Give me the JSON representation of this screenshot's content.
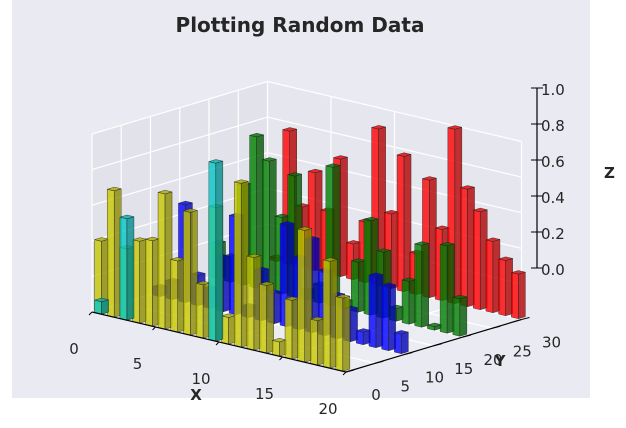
{
  "chart_data": {
    "type": "bar3d",
    "title": "Plotting Random Data",
    "xlabel": "X",
    "ylabel": "Y",
    "zlabel": "Z",
    "xlim": [
      0,
      20
    ],
    "ylim": [
      0,
      30
    ],
    "zlim": [
      0,
      1.0
    ],
    "x_ticks": [
      "0",
      "5",
      "10",
      "15",
      "20"
    ],
    "y_ticks": [
      "0",
      "5",
      "10",
      "15",
      "20",
      "25",
      "30"
    ],
    "z_ticks": [
      "0.0",
      "0.2",
      "0.4",
      "0.6",
      "0.8",
      "1.0"
    ],
    "grid": true,
    "x": [
      0,
      1,
      2,
      3,
      4,
      5,
      6,
      7,
      8,
      9,
      10,
      11,
      12,
      13,
      14,
      15,
      16,
      17,
      18,
      19
    ],
    "series": [
      {
        "y": 30,
        "color": "#ff0000",
        "values": [
          0.02,
          0.75,
          0.34,
          0.55,
          0.35,
          0.66,
          0.2,
          0.34,
          0.88,
          0.42,
          0.76,
          0.23,
          0.66,
          0.4,
          0.98,
          0.66,
          0.55,
          0.4,
          0.31,
          0.25
        ]
      },
      {
        "y": 20,
        "color": "#008000",
        "values": [
          0.2,
          0.14,
          0.56,
          0.85,
          0.73,
          0.43,
          0.68,
          0.05,
          0.1,
          0.78,
          0.04,
          0.28,
          0.53,
          0.37,
          0.07,
          0.24,
          0.46,
          0.02,
          0.49,
          0.21
        ]
      },
      {
        "y": 10,
        "color": "#0000ff",
        "values": [
          0.05,
          0.1,
          0.55,
          0.17,
          0.11,
          0.3,
          0.55,
          0.06,
          0.28,
          0.17,
          0.57,
          0.4,
          0.52,
          0.36,
          0.24,
          0.18,
          0.07,
          0.4,
          0.36,
          0.11
        ]
      },
      {
        "y": 0,
        "color": "#c8c800",
        "values": [
          0.41,
          0.71,
          0.4,
          0.46,
          0.48,
          0.76,
          0.4,
          0.69,
          0.3,
          0.75,
          0.15,
          0.92,
          0.52,
          0.38,
          0.08,
          0.33,
          0.74,
          0.25,
          0.6,
          0.41
        ]
      },
      {
        "y": 0,
        "color": "#00c8c8",
        "note_visible_in_back": true,
        "values": [
          0.07,
          0.0,
          0.57,
          0.0,
          0.0,
          0.0,
          0.0,
          0.0,
          0.0,
          1.0,
          0.0,
          0.0,
          0.0,
          0.0,
          0.0,
          0.0,
          0.0,
          0.0,
          0.0,
          0.0
        ]
      }
    ]
  }
}
